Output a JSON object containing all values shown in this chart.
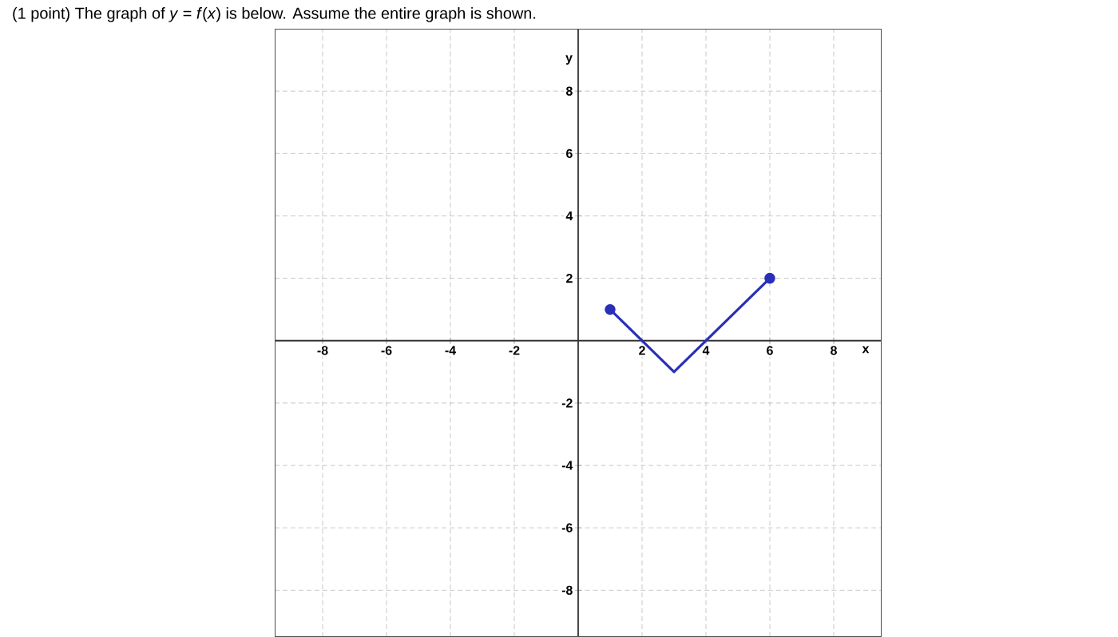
{
  "chart_data": {
    "type": "line",
    "title": "(1 point) The graph of *y* = *f*(*x*) is below. Assume the entire graph is shown.",
    "xlabel": "x",
    "ylabel": "y",
    "x": [
      1,
      3,
      6
    ],
    "series": [
      {
        "color": "#2a2fb8",
        "values": [
          1,
          -1,
          2
        ]
      }
    ],
    "xlim": [
      -9.5,
      9.5
    ],
    "ylim": [
      -9.5,
      10
    ],
    "xticks": [
      -8,
      -6,
      -4,
      -2,
      2,
      4,
      6,
      8
    ],
    "yticks": [
      -8,
      -6,
      -4,
      -2,
      2,
      4,
      6,
      8
    ],
    "grid": true,
    "marker": "circle",
    "line_style": "solid"
  }
}
